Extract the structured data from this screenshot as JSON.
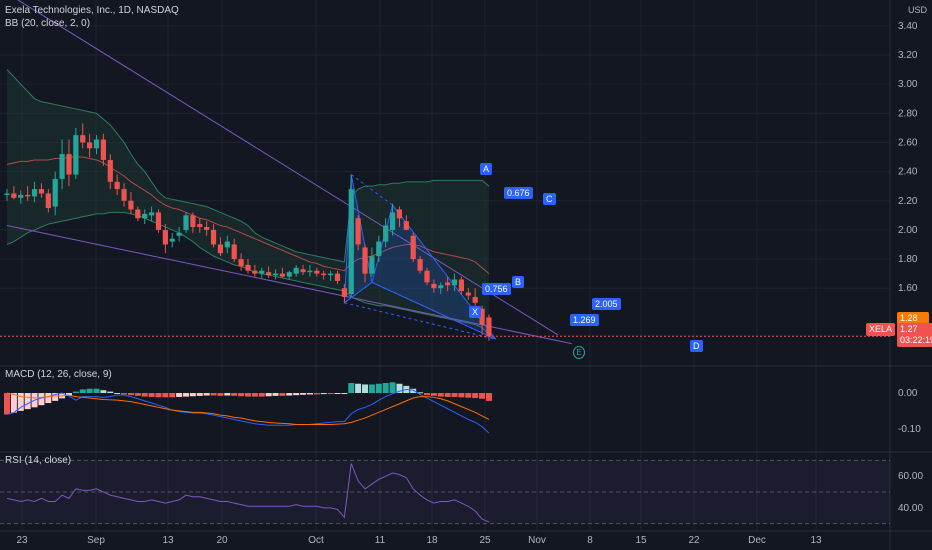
{
  "legends": {
    "main": "Exela Technologies, Inc., 1D, NASDAQ",
    "bb": "BB (20, close, 2, 0)",
    "macd": "MACD (12, 26, close, 9)",
    "rsi": "RSI (14, close)"
  },
  "price_axis_unit": "USD",
  "ticker_tag": "XELA",
  "last_price": "1.27",
  "prev_tag": "1.28",
  "countdown": "03:22:19",
  "pattern": {
    "points": [
      "X",
      "A",
      "B",
      "C",
      "D"
    ],
    "ratios": [
      "0.756",
      "0.676",
      "2.005",
      "1.269"
    ]
  },
  "colors": {
    "up": "#26a69a",
    "down": "#ef5350",
    "bb": "#2e7d5b",
    "basis": "#b34a4a",
    "trend": "#7e57c2",
    "pattern": "#2962ff",
    "macd": "#2962ff",
    "signal": "#ff6d00",
    "rsi": "#7e57c2"
  },
  "chart_data": [
    {
      "type": "candlestick",
      "title": "Exela Technologies, Inc., 1D, NASDAQ",
      "x_ticks": [
        "23",
        "Sep",
        "13",
        "20",
        "Oct",
        "11",
        "18",
        "25",
        "Nov",
        "8",
        "15",
        "22",
        "Dec",
        "13"
      ],
      "y_ticks": [
        1.6,
        1.8,
        2.0,
        2.2,
        2.4,
        2.6,
        2.8,
        3.0,
        3.2,
        3.4
      ],
      "ylim": [
        1.08,
        3.55
      ],
      "candles": [
        [
          2.24,
          2.28,
          2.2,
          2.25
        ],
        [
          2.25,
          2.3,
          2.21,
          2.22
        ],
        [
          2.22,
          2.27,
          2.18,
          2.24
        ],
        [
          2.24,
          2.3,
          2.2,
          2.23
        ],
        [
          2.23,
          2.33,
          2.19,
          2.28
        ],
        [
          2.28,
          2.32,
          2.22,
          2.25
        ],
        [
          2.25,
          2.28,
          2.12,
          2.15
        ],
        [
          2.16,
          2.4,
          2.1,
          2.35
        ],
        [
          2.35,
          2.62,
          2.28,
          2.52
        ],
        [
          2.52,
          2.62,
          2.3,
          2.38
        ],
        [
          2.38,
          2.7,
          2.35,
          2.65
        ],
        [
          2.65,
          2.73,
          2.56,
          2.6
        ],
        [
          2.6,
          2.66,
          2.5,
          2.56
        ],
        [
          2.56,
          2.65,
          2.52,
          2.62
        ],
        [
          2.62,
          2.66,
          2.44,
          2.48
        ],
        [
          2.48,
          2.52,
          2.28,
          2.33
        ],
        [
          2.33,
          2.38,
          2.24,
          2.28
        ],
        [
          2.28,
          2.32,
          2.16,
          2.2
        ],
        [
          2.2,
          2.26,
          2.11,
          2.14
        ],
        [
          2.14,
          2.16,
          2.06,
          2.08
        ],
        [
          2.08,
          2.14,
          2.04,
          2.11
        ],
        [
          2.1,
          2.16,
          2.06,
          2.12
        ],
        [
          2.12,
          2.14,
          1.98,
          2.0
        ],
        [
          2.0,
          2.04,
          1.84,
          1.9
        ],
        [
          1.92,
          1.98,
          1.88,
          1.94
        ],
        [
          1.96,
          2.02,
          1.92,
          1.98
        ],
        [
          2.0,
          2.12,
          1.98,
          2.1
        ],
        [
          2.1,
          2.12,
          1.98,
          2.02
        ],
        [
          2.04,
          2.08,
          1.98,
          2.02
        ],
        [
          2.02,
          2.06,
          1.96,
          2.0
        ],
        [
          2.0,
          2.04,
          1.88,
          1.9
        ],
        [
          1.9,
          1.95,
          1.82,
          1.84
        ],
        [
          1.88,
          1.96,
          1.84,
          1.92
        ],
        [
          1.9,
          1.94,
          1.78,
          1.8
        ],
        [
          1.8,
          1.84,
          1.72,
          1.75
        ],
        [
          1.76,
          1.8,
          1.7,
          1.72
        ],
        [
          1.72,
          1.76,
          1.68,
          1.7
        ],
        [
          1.7,
          1.74,
          1.67,
          1.72
        ],
        [
          1.71,
          1.75,
          1.67,
          1.69
        ],
        [
          1.69,
          1.73,
          1.66,
          1.7
        ],
        [
          1.7,
          1.74,
          1.67,
          1.68
        ],
        [
          1.68,
          1.72,
          1.66,
          1.71
        ],
        [
          1.7,
          1.76,
          1.68,
          1.74
        ],
        [
          1.73,
          1.76,
          1.69,
          1.71
        ],
        [
          1.71,
          1.76,
          1.68,
          1.72
        ],
        [
          1.72,
          1.74,
          1.68,
          1.7
        ],
        [
          1.7,
          1.72,
          1.66,
          1.69
        ],
        [
          1.69,
          1.72,
          1.65,
          1.7
        ],
        [
          1.7,
          1.72,
          1.63,
          1.65
        ],
        [
          1.6,
          1.63,
          1.5,
          1.54
        ],
        [
          1.56,
          2.38,
          1.54,
          2.28
        ],
        [
          2.08,
          2.1,
          1.86,
          1.9
        ],
        [
          1.88,
          1.9,
          1.64,
          1.7
        ],
        [
          1.7,
          1.88,
          1.68,
          1.82
        ],
        [
          1.82,
          1.96,
          1.78,
          1.92
        ],
        [
          1.92,
          2.08,
          1.88,
          2.03
        ],
        [
          2.0,
          2.18,
          1.96,
          2.12
        ],
        [
          2.14,
          2.16,
          2.02,
          2.08
        ],
        [
          2.06,
          2.1,
          2.0,
          2.0
        ],
        [
          1.96,
          1.98,
          1.78,
          1.8
        ],
        [
          1.8,
          1.82,
          1.7,
          1.72
        ],
        [
          1.72,
          1.74,
          1.62,
          1.64
        ],
        [
          1.63,
          1.66,
          1.57,
          1.6
        ],
        [
          1.6,
          1.64,
          1.56,
          1.62
        ],
        [
          1.64,
          1.68,
          1.58,
          1.62
        ],
        [
          1.62,
          1.7,
          1.58,
          1.66
        ],
        [
          1.66,
          1.68,
          1.56,
          1.58
        ],
        [
          1.57,
          1.6,
          1.52,
          1.55
        ],
        [
          1.54,
          1.6,
          1.48,
          1.5
        ],
        [
          1.46,
          1.48,
          1.28,
          1.35
        ],
        [
          1.4,
          1.42,
          1.24,
          1.27
        ]
      ],
      "bb_upper": [
        3.1,
        3.05,
        3.0,
        2.95,
        2.9,
        2.88,
        2.87,
        2.86,
        2.85,
        2.84,
        2.83,
        2.82,
        2.81,
        2.8,
        2.76,
        2.72,
        2.66,
        2.6,
        2.52,
        2.45,
        2.4,
        2.33,
        2.26,
        2.22,
        2.21,
        2.2,
        2.19,
        2.18,
        2.17,
        2.16,
        2.14,
        2.12,
        2.1,
        2.08,
        2.06,
        2.03,
        1.98,
        1.95,
        1.93,
        1.91,
        1.89,
        1.87,
        1.85,
        1.84,
        1.83,
        1.82,
        1.81,
        1.8,
        1.79,
        1.78,
        2.23,
        2.28,
        2.3,
        2.3,
        2.31,
        2.31,
        2.32,
        2.32,
        2.33,
        2.33,
        2.33,
        2.33,
        2.34,
        2.34,
        2.34,
        2.34,
        2.34,
        2.34,
        2.34,
        2.34,
        2.3
      ],
      "bb_basis": [
        2.45,
        2.46,
        2.47,
        2.47,
        2.48,
        2.48,
        2.48,
        2.49,
        2.49,
        2.5,
        2.5,
        2.5,
        2.49,
        2.48,
        2.46,
        2.43,
        2.4,
        2.37,
        2.33,
        2.3,
        2.27,
        2.24,
        2.2,
        2.17,
        2.15,
        2.14,
        2.12,
        2.1,
        2.08,
        2.07,
        2.05,
        2.03,
        2.02,
        2.0,
        1.98,
        1.96,
        1.94,
        1.92,
        1.9,
        1.88,
        1.86,
        1.84,
        1.82,
        1.8,
        1.78,
        1.77,
        1.75,
        1.74,
        1.73,
        1.72,
        1.77,
        1.8,
        1.81,
        1.82,
        1.84,
        1.86,
        1.88,
        1.89,
        1.9,
        1.9,
        1.89,
        1.87,
        1.85,
        1.84,
        1.83,
        1.82,
        1.81,
        1.8,
        1.78,
        1.74,
        1.7
      ],
      "bb_lower": [
        1.9,
        1.92,
        1.95,
        1.98,
        2.0,
        2.02,
        2.04,
        2.05,
        2.06,
        2.07,
        2.08,
        2.09,
        2.1,
        2.11,
        2.11,
        2.12,
        2.12,
        2.12,
        2.11,
        2.1,
        2.08,
        2.06,
        2.04,
        2.02,
        2.0,
        1.98,
        1.95,
        1.92,
        1.88,
        1.85,
        1.82,
        1.8,
        1.78,
        1.76,
        1.75,
        1.73,
        1.71,
        1.7,
        1.69,
        1.68,
        1.67,
        1.66,
        1.65,
        1.64,
        1.63,
        1.62,
        1.61,
        1.6,
        1.59,
        1.58,
        1.54,
        1.52,
        1.5,
        1.49,
        1.48,
        1.48,
        1.47,
        1.46,
        1.45,
        1.44,
        1.43,
        1.42,
        1.41,
        1.4,
        1.39,
        1.38,
        1.37,
        1.36,
        1.35,
        1.33,
        1.28
      ],
      "trendlines": [
        {
          "from": [
            -6,
            3.8
          ],
          "to": [
            80,
            1.28
          ]
        },
        {
          "from": [
            0,
            2.03
          ],
          "to": [
            82,
            1.22
          ]
        }
      ],
      "harmonic_pattern": {
        "X": [
          49,
          1.5
        ],
        "A": [
          50,
          2.38
        ],
        "B": [
          53,
          1.64
        ],
        "C": [
          56,
          2.17
        ],
        "D": [
          71,
          1.25
        ],
        "ratios": {
          "XB": 0.756,
          "AC": 0.676,
          "BD": 2.005,
          "XD": 1.269
        }
      },
      "last_price": 1.27
    },
    {
      "type": "bar",
      "title": "MACD (12, 26, close, 9)",
      "y_ticks": [
        0.0,
        -0.1
      ],
      "ylim": [
        -0.165,
        0.07
      ],
      "histogram": [
        -0.06,
        -0.055,
        -0.05,
        -0.045,
        -0.04,
        -0.034,
        -0.028,
        -0.022,
        -0.015,
        -0.008,
        0.004,
        0.01,
        0.012,
        0.012,
        0.008,
        0.004,
        0.0,
        -0.004,
        -0.006,
        -0.008,
        -0.01,
        -0.011,
        -0.012,
        -0.012,
        -0.012,
        -0.011,
        -0.01,
        -0.009,
        -0.008,
        -0.007,
        -0.007,
        -0.008,
        -0.007,
        -0.008,
        -0.009,
        -0.01,
        -0.01,
        -0.01,
        -0.009,
        -0.008,
        -0.008,
        -0.007,
        -0.006,
        -0.005,
        -0.004,
        -0.004,
        -0.003,
        -0.003,
        -0.002,
        -0.001,
        0.028,
        0.026,
        0.024,
        0.024,
        0.026,
        0.028,
        0.03,
        0.026,
        0.02,
        0.012,
        0.002,
        -0.006,
        -0.008,
        -0.01,
        -0.011,
        -0.011,
        -0.012,
        -0.013,
        -0.014,
        -0.016,
        -0.022
      ],
      "macd": [
        -0.06,
        -0.055,
        -0.04,
        -0.03,
        -0.02,
        -0.014,
        -0.01,
        -0.004,
        0.0,
        -0.008,
        -0.02,
        -0.01,
        -0.01,
        -0.01,
        -0.012,
        -0.01,
        -0.006,
        -0.006,
        -0.01,
        -0.016,
        -0.022,
        -0.028,
        -0.034,
        -0.04,
        -0.048,
        -0.052,
        -0.054,
        -0.056,
        -0.056,
        -0.058,
        -0.062,
        -0.066,
        -0.07,
        -0.074,
        -0.078,
        -0.082,
        -0.086,
        -0.088,
        -0.09,
        -0.09,
        -0.09,
        -0.09,
        -0.088,
        -0.088,
        -0.088,
        -0.086,
        -0.084,
        -0.082,
        -0.08,
        -0.08,
        -0.058,
        -0.046,
        -0.04,
        -0.032,
        -0.02,
        -0.01,
        -0.002,
        0.005,
        0.01,
        0.008,
        -0.004,
        -0.014,
        -0.024,
        -0.034,
        -0.044,
        -0.054,
        -0.064,
        -0.074,
        -0.082,
        -0.094,
        -0.112
      ],
      "signal": [
        0.0,
        -0.004,
        -0.01,
        -0.012,
        -0.014,
        -0.012,
        -0.01,
        -0.008,
        -0.008,
        -0.006,
        -0.01,
        -0.012,
        -0.014,
        -0.016,
        -0.018,
        -0.019,
        -0.02,
        -0.022,
        -0.024,
        -0.028,
        -0.032,
        -0.036,
        -0.04,
        -0.044,
        -0.048,
        -0.05,
        -0.052,
        -0.054,
        -0.054,
        -0.056,
        -0.058,
        -0.062,
        -0.064,
        -0.068,
        -0.07,
        -0.074,
        -0.078,
        -0.08,
        -0.082,
        -0.084,
        -0.085,
        -0.086,
        -0.088,
        -0.088,
        -0.088,
        -0.088,
        -0.088,
        -0.088,
        -0.087,
        -0.086,
        -0.082,
        -0.076,
        -0.07,
        -0.062,
        -0.054,
        -0.046,
        -0.038,
        -0.03,
        -0.022,
        -0.014,
        -0.01,
        -0.01,
        -0.012,
        -0.016,
        -0.022,
        -0.03,
        -0.038,
        -0.046,
        -0.054,
        -0.064,
        -0.074
      ]
    },
    {
      "type": "line",
      "title": "RSI (14, close)",
      "y_ticks": [
        40.0,
        60.0
      ],
      "ylim": [
        26,
        74
      ],
      "bands": [
        30,
        50,
        70
      ],
      "values": [
        46,
        45,
        44,
        45,
        44,
        46,
        44,
        44,
        48,
        46,
        52,
        51,
        51,
        52,
        50,
        48,
        47,
        46,
        45,
        44,
        44,
        45,
        44,
        43,
        44,
        45,
        48,
        47,
        47,
        46,
        45,
        44,
        44,
        43,
        42,
        41,
        41,
        41,
        41,
        41,
        41,
        41,
        42,
        41,
        41,
        41,
        40,
        40,
        39,
        34,
        68,
        57,
        52,
        55,
        58,
        60,
        62,
        61,
        59,
        52,
        48,
        45,
        43,
        44,
        44,
        45,
        43,
        41,
        38,
        33,
        31
      ]
    }
  ]
}
